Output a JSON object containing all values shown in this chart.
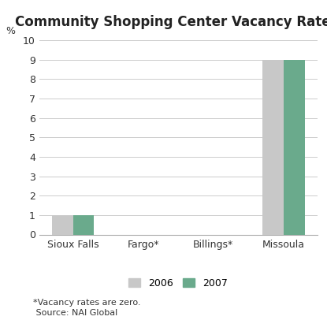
{
  "title": "Community Shopping Center Vacancy Rates",
  "categories": [
    "Sioux Falls",
    "Fargo*",
    "Billings*",
    "Missoula"
  ],
  "values_2006": [
    1,
    0,
    0,
    9
  ],
  "values_2007": [
    1,
    0,
    0,
    9
  ],
  "color_2006": "#c8c8c8",
  "color_2007": "#6aaa8c",
  "ylim": [
    0,
    10
  ],
  "yticks": [
    0,
    1,
    2,
    3,
    4,
    5,
    6,
    7,
    8,
    9,
    10
  ],
  "ylabel_text": "%",
  "legend_labels": [
    "2006",
    "2007"
  ],
  "footnote_line1": "*Vacancy rates are zero.",
  "footnote_line2": " Source: NAI Global",
  "bar_width": 0.3,
  "background_color": "#ffffff",
  "title_fontsize": 12,
  "tick_fontsize": 9,
  "legend_fontsize": 9,
  "footnote_fontsize": 8
}
